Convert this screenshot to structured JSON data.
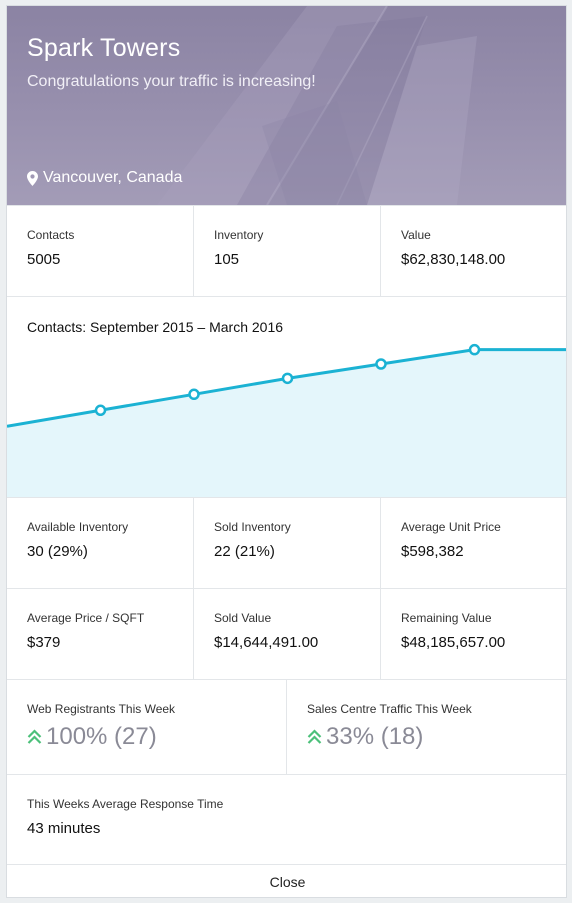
{
  "header": {
    "title": "Spark Towers",
    "subtitle": "Congratulations your traffic is increasing!",
    "location": "Vancouver, Canada",
    "location_icon": "map-pin-icon"
  },
  "stats_top": [
    {
      "label": "Contacts",
      "value": "5005"
    },
    {
      "label": "Inventory",
      "value": "105"
    },
    {
      "label": "Value",
      "value": "$62,830,148.00"
    }
  ],
  "chart_data": {
    "type": "area",
    "title": "Contacts: September 2015 – March 2016",
    "points": [
      {
        "x": 0,
        "y": 2.25,
        "marker": false
      },
      {
        "x": 1,
        "y": 2.75,
        "marker": true
      },
      {
        "x": 2,
        "y": 3.25,
        "marker": true
      },
      {
        "x": 3,
        "y": 3.75,
        "marker": true
      },
      {
        "x": 4,
        "y": 4.2,
        "marker": true
      },
      {
        "x": 5,
        "y": 4.65,
        "marker": true
      },
      {
        "x": 6,
        "y": 4.65,
        "marker": false
      }
    ],
    "ylim": [
      0,
      6.3
    ],
    "xlim": [
      0,
      6
    ],
    "line_color": "#1bb2d3",
    "fill_color": "#e4f6fb",
    "grid": false,
    "axes_visible": false
  },
  "stats_mid": [
    {
      "label": "Available Inventory",
      "value": "30 (29%)"
    },
    {
      "label": "Sold Inventory",
      "value": "22 (21%)"
    },
    {
      "label": "Average Unit Price",
      "value": "$598,382"
    }
  ],
  "stats_mid2": [
    {
      "label": "Average Price / SQFT",
      "value": "$379"
    },
    {
      "label": "Sold Value",
      "value": "$14,644,491.00"
    },
    {
      "label": "Remaining Value",
      "value": "$48,185,657.00"
    }
  ],
  "weekly": [
    {
      "label": "Web Registrants This Week",
      "value": "100% (27)",
      "icon": "double-chevron-up-icon",
      "icon_color": "#4cc07a"
    },
    {
      "label": "Sales Centre Traffic This Week",
      "value": "33% (18)",
      "icon": "double-chevron-up-icon",
      "icon_color": "#4cc07a"
    }
  ],
  "response": {
    "label": "This Weeks Average Response Time",
    "value": "43 minutes"
  },
  "footer": {
    "close_label": "Close"
  },
  "colors": {
    "hero": "#968eac",
    "accent": "#1bb2d3",
    "up": "#4cc07a"
  }
}
